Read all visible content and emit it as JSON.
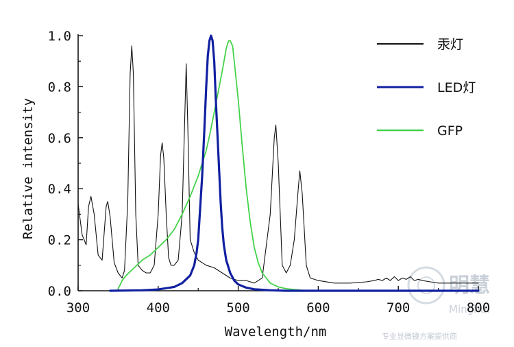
{
  "chart_data": {
    "type": "line",
    "xlabel": "Wavelength/nm",
    "ylabel": "Relative intensity",
    "xlim": [
      300,
      800
    ],
    "ylim": [
      0,
      1.0
    ],
    "x_ticks": [
      300,
      400,
      500,
      600,
      700,
      800
    ],
    "x_tick_labels": [
      "300",
      "400",
      "500",
      "600",
      "700",
      "800"
    ],
    "y_ticks": [
      0,
      0.2,
      0.4,
      0.6,
      0.8,
      1.0
    ],
    "y_tick_labels": [
      "0.0",
      "0.2",
      "0.4",
      "0.6",
      "0.8",
      "1.0"
    ],
    "grid": false,
    "legend_position": "top-right",
    "series": [
      {
        "name": "汞灯",
        "color": "#111111",
        "x": [
          300,
          305,
          310,
          313,
          316,
          320,
          325,
          330,
          335,
          337,
          340,
          345,
          350,
          355,
          358,
          362,
          365,
          367,
          369,
          372,
          375,
          380,
          385,
          390,
          395,
          400,
          403,
          405,
          407,
          410,
          413,
          416,
          420,
          425,
          430,
          433,
          435,
          437,
          440,
          445,
          450,
          460,
          470,
          480,
          490,
          500,
          510,
          520,
          530,
          540,
          545,
          547,
          550,
          555,
          560,
          565,
          570,
          575,
          577,
          580,
          585,
          590,
          600,
          620,
          640,
          660,
          670,
          675,
          680,
          685,
          690,
          695,
          700,
          705,
          710,
          715,
          720,
          725,
          730,
          740,
          750,
          760,
          780,
          800
        ],
        "y": [
          0.34,
          0.22,
          0.18,
          0.33,
          0.37,
          0.3,
          0.14,
          0.12,
          0.33,
          0.35,
          0.29,
          0.11,
          0.07,
          0.05,
          0.08,
          0.35,
          0.85,
          0.96,
          0.85,
          0.3,
          0.1,
          0.08,
          0.07,
          0.07,
          0.1,
          0.3,
          0.53,
          0.58,
          0.52,
          0.3,
          0.13,
          0.1,
          0.1,
          0.12,
          0.3,
          0.65,
          0.89,
          0.65,
          0.2,
          0.15,
          0.12,
          0.1,
          0.09,
          0.07,
          0.05,
          0.04,
          0.04,
          0.03,
          0.05,
          0.3,
          0.6,
          0.65,
          0.5,
          0.1,
          0.07,
          0.1,
          0.2,
          0.4,
          0.47,
          0.38,
          0.1,
          0.05,
          0.04,
          0.03,
          0.03,
          0.035,
          0.04,
          0.045,
          0.04,
          0.05,
          0.04,
          0.055,
          0.04,
          0.05,
          0.045,
          0.055,
          0.04,
          0.045,
          0.04,
          0.035,
          0.03,
          0.03,
          0.03,
          0.03
        ]
      },
      {
        "name": "LED灯",
        "color": "#1020a0",
        "x": [
          340,
          380,
          400,
          420,
          430,
          440,
          445,
          448,
          450,
          452,
          455,
          458,
          460,
          462,
          464,
          466,
          468,
          470,
          472,
          475,
          478,
          480,
          482,
          485,
          490,
          495,
          500,
          510,
          520,
          540,
          560,
          600,
          700,
          800
        ],
        "y": [
          0.0,
          0.002,
          0.005,
          0.015,
          0.03,
          0.06,
          0.1,
          0.15,
          0.2,
          0.3,
          0.45,
          0.65,
          0.8,
          0.92,
          0.98,
          1.0,
          0.98,
          0.9,
          0.75,
          0.55,
          0.35,
          0.25,
          0.18,
          0.12,
          0.07,
          0.04,
          0.025,
          0.012,
          0.006,
          0.002,
          0.0,
          0.0,
          0.0,
          0.0
        ]
      },
      {
        "name": "GFP",
        "color": "#44d24a",
        "x": [
          350,
          352,
          355,
          360,
          370,
          380,
          390,
          400,
          410,
          420,
          430,
          440,
          450,
          460,
          465,
          470,
          475,
          480,
          485,
          488,
          490,
          493,
          495,
          500,
          505,
          510,
          515,
          520,
          525,
          530,
          535,
          540,
          550,
          560,
          580,
          600
        ],
        "y": [
          0.01,
          0.02,
          0.04,
          0.06,
          0.09,
          0.12,
          0.14,
          0.17,
          0.2,
          0.24,
          0.3,
          0.37,
          0.45,
          0.55,
          0.62,
          0.7,
          0.78,
          0.86,
          0.95,
          0.98,
          0.98,
          0.96,
          0.9,
          0.75,
          0.57,
          0.4,
          0.27,
          0.17,
          0.11,
          0.07,
          0.05,
          0.03,
          0.015,
          0.008,
          0.002,
          0.0
        ]
      }
    ]
  },
  "watermark": {
    "title": "明慧",
    "subtitle": "Minghui",
    "tagline": "专业显微镜方案提供商"
  }
}
